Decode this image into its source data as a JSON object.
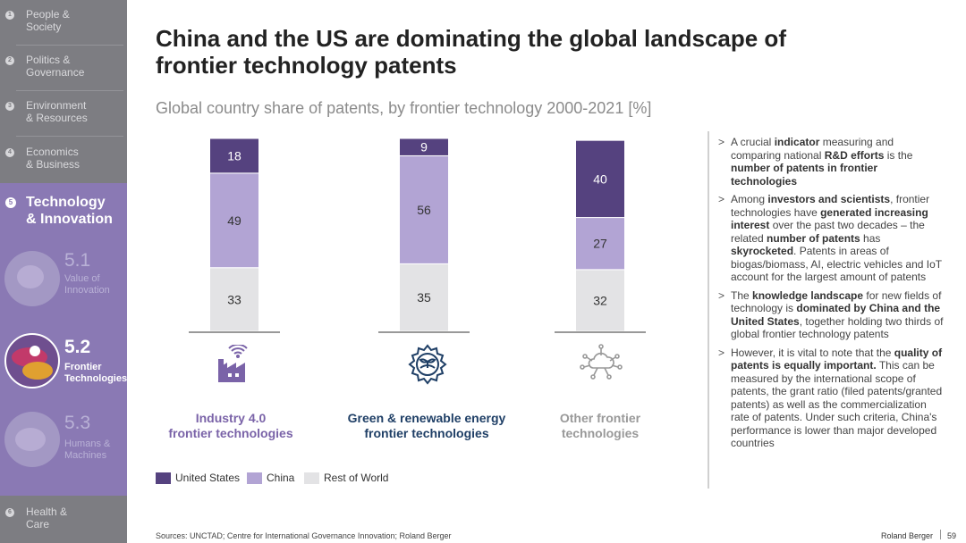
{
  "sidebar": {
    "sections": [
      {
        "num": "1",
        "label": "People &\nSociety"
      },
      {
        "num": "2",
        "label": "Politics &\nGovernance"
      },
      {
        "num": "3",
        "label": "Environment\n& Resources"
      },
      {
        "num": "4",
        "label": "Economics\n& Business"
      }
    ],
    "active": {
      "num": "5",
      "label": "Technology\n& Innovation"
    },
    "subitems": [
      {
        "num": "5.1",
        "label": "Value of\nInnovation"
      },
      {
        "num": "5.2",
        "label": "Frontier\nTechnologies"
      },
      {
        "num": "5.3",
        "label": "Humans &\nMachines"
      }
    ],
    "last": {
      "num": "6",
      "label": "Health &\nCare"
    }
  },
  "header": {
    "title": "China and the US are dominating the global landscape of frontier technology patents",
    "subtitle": "Global country share of patents, by frontier technology 2000-2021 [%]"
  },
  "chart_data": {
    "type": "bar",
    "stacked": true,
    "title": "Global country share of patents, by frontier technology 2000-2021 [%]",
    "unit": "%",
    "categories": [
      "Industry 4.0\nfrontier technologies",
      "Green & renewable energy\nfrontier technologies",
      "Other frontier\ntechnologies"
    ],
    "series": [
      {
        "name": "Rest of World",
        "values": [
          33,
          35,
          32
        ],
        "color": "#e3e3e5",
        "label_color": "#333333"
      },
      {
        "name": "China",
        "values": [
          49,
          56,
          27
        ],
        "color": "#b2a4d4",
        "label_color": "#333333"
      },
      {
        "name": "United States",
        "values": [
          18,
          9,
          40
        ],
        "color": "#55427f",
        "label_color": "#ffffff"
      }
    ],
    "category_colors": [
      "#7a63a8",
      "#1f3f66",
      "#999999"
    ],
    "icons": [
      "factory-icon",
      "gear-leaf-icon",
      "cloud-network-icon"
    ],
    "ylim": [
      0,
      100
    ],
    "legend_order": [
      "United States",
      "China",
      "Rest of World"
    ],
    "legend_position": "bottom-left"
  },
  "bullets": [
    {
      "parts": [
        [
          "A crucial ",
          false
        ],
        [
          "indicator",
          true
        ],
        [
          " measuring and comparing national ",
          false
        ],
        [
          "R&D efforts",
          true
        ],
        [
          " is the ",
          false
        ],
        [
          "number of patents in frontier technologies",
          true
        ]
      ]
    },
    {
      "parts": [
        [
          "Among ",
          false
        ],
        [
          "investors and scientists",
          true
        ],
        [
          ", frontier technologies have ",
          false
        ],
        [
          "generated increasing interest",
          true
        ],
        [
          " over the past two decades – the related ",
          false
        ],
        [
          "number of patents",
          true
        ],
        [
          " has ",
          false
        ],
        [
          "skyrocketed",
          true
        ],
        [
          ". Patents in areas of biogas/biomass, AI, electric vehicles and IoT account for the largest amount of patents",
          false
        ]
      ]
    },
    {
      "parts": [
        [
          "The ",
          false
        ],
        [
          "knowledge landscape",
          true
        ],
        [
          " for new fields of technology is ",
          false
        ],
        [
          "dominated by China and the United States",
          true
        ],
        [
          ", together holding two thirds of global frontier technology patents",
          false
        ]
      ]
    },
    {
      "parts": [
        [
          "However, it is vital to note that the ",
          false
        ],
        [
          "quality of patents is equally important.",
          true
        ],
        [
          " This can be measured by the international scope of patents, the grant ratio (filed patents/granted patents) as well as the commercialization rate of patents. Under such criteria, China's performance is lower than major developed countries",
          false
        ]
      ]
    }
  ],
  "footer": {
    "source": "Sources: UNCTAD; Centre for International Governance Innovation; Roland Berger",
    "brand": "Roland Berger",
    "page": "59"
  }
}
